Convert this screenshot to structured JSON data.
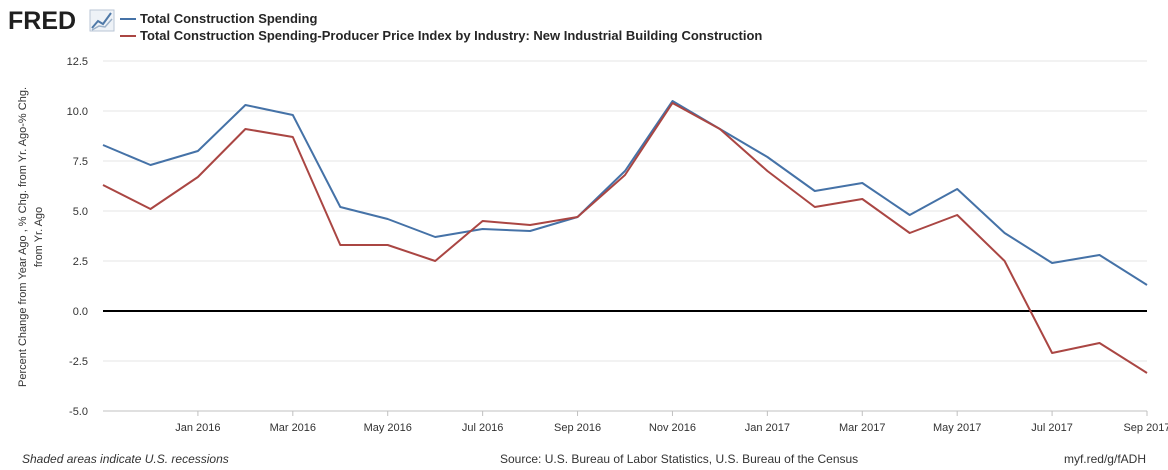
{
  "header": {
    "logo_text": "FRED"
  },
  "colors": {
    "series_1": "#4572a7",
    "series_2": "#aa4643",
    "grid": "#e6e6e6",
    "zero_line": "#000000",
    "axis": "#c0c0c0"
  },
  "footer": {
    "recession_note": "Shaded areas indicate U.S. recessions",
    "source": "Source: U.S. Bureau of Labor Statistics, U.S. Bureau of the Census",
    "link": "myf.red/g/fADH"
  },
  "chart_data": {
    "type": "line",
    "title": "",
    "ylabel_lines": [
      "Percent Change from Year Ago , % Chg. from Yr. Ago-% Chg.",
      "from Yr. Ago"
    ],
    "xlabel": "",
    "ylim": [
      -5.0,
      12.5
    ],
    "y_ticks": [
      -5.0,
      -2.5,
      0.0,
      2.5,
      5.0,
      7.5,
      10.0,
      12.5
    ],
    "y_tick_labels": [
      "-5.0",
      "-2.5",
      "0.0",
      "2.5",
      "5.0",
      "7.5",
      "10.0",
      "12.5"
    ],
    "x_range_month_index": [
      0,
      22
    ],
    "x_ticks": [
      {
        "label": "Jan 2016",
        "month_index": 2
      },
      {
        "label": "Mar 2016",
        "month_index": 4
      },
      {
        "label": "May 2016",
        "month_index": 6
      },
      {
        "label": "Jul 2016",
        "month_index": 8
      },
      {
        "label": "Sep 2016",
        "month_index": 10
      },
      {
        "label": "Nov 2016",
        "month_index": 12
      },
      {
        "label": "Jan 2017",
        "month_index": 14
      },
      {
        "label": "Mar 2017",
        "month_index": 16
      },
      {
        "label": "May 2017",
        "month_index": 18
      },
      {
        "label": "Jul 2017",
        "month_index": 20
      },
      {
        "label": "Sep 2017",
        "month_index": 22
      }
    ],
    "x": [
      "Nov 2015",
      "Dec 2015",
      "Jan 2016",
      "Feb 2016",
      "Mar 2016",
      "Apr 2016",
      "May 2016",
      "Jun 2016",
      "Jul 2016",
      "Aug 2016",
      "Sep 2016",
      "Oct 2016",
      "Nov 2016",
      "Dec 2016",
      "Jan 2017",
      "Feb 2017",
      "Mar 2017",
      "Apr 2017",
      "May 2017",
      "Jun 2017",
      "Jul 2017",
      "Aug 2017",
      "Sep 2017"
    ],
    "series": [
      {
        "name": "Total Construction Spending",
        "color": "#4572a7",
        "values": [
          8.3,
          7.3,
          8.0,
          10.3,
          9.8,
          5.2,
          4.6,
          3.7,
          4.1,
          4.0,
          4.7,
          7.0,
          10.5,
          9.1,
          7.7,
          6.0,
          6.4,
          4.8,
          6.1,
          3.9,
          2.4,
          2.8,
          1.3
        ]
      },
      {
        "name": "Total Construction Spending-Producer Price Index by Industry: New Industrial Building Construction",
        "color": "#aa4643",
        "values": [
          6.3,
          5.1,
          6.7,
          9.1,
          8.7,
          3.3,
          3.3,
          2.5,
          4.5,
          4.3,
          4.7,
          6.8,
          10.4,
          9.1,
          7.0,
          5.2,
          5.6,
          3.9,
          4.8,
          2.5,
          -2.1,
          -1.6,
          -3.1
        ]
      }
    ]
  }
}
